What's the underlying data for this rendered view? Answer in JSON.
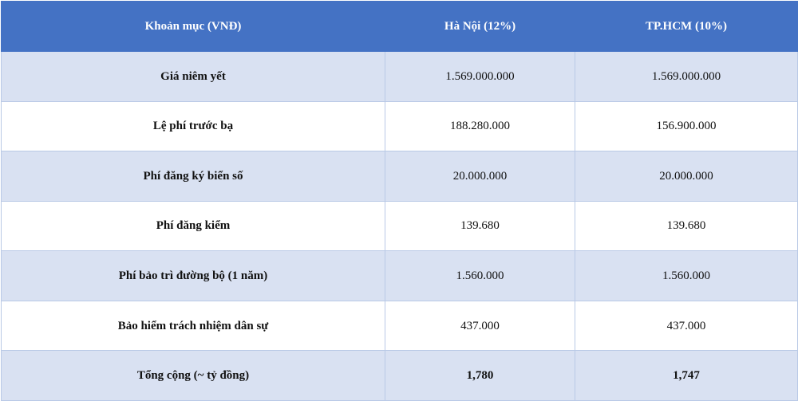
{
  "table": {
    "headers": [
      "Khoản mục (VNĐ)",
      "Hà Nội (12%)",
      "TP.HCM (10%)"
    ],
    "rows": [
      {
        "label": "Giá niêm yết",
        "hanoi": "1.569.000.000",
        "hcm": "1.569.000.000"
      },
      {
        "label": "Lệ phí trước bạ",
        "hanoi": "188.280.000",
        "hcm": "156.900.000"
      },
      {
        "label": "Phí đăng ký biển số",
        "hanoi": "20.000.000",
        "hcm": "20.000.000"
      },
      {
        "label": "Phí đăng kiểm",
        "hanoi": "139.680",
        "hcm": "139.680"
      },
      {
        "label": "Phí bảo trì đường bộ (1 năm)",
        "hanoi": "1.560.000",
        "hcm": "1.560.000"
      },
      {
        "label": "Bảo hiểm trách nhiệm dân sự",
        "hanoi": "437.000",
        "hcm": "437.000"
      },
      {
        "label": "Tổng cộng (~ tỷ đồng)",
        "hanoi": "1,780",
        "hcm": "1,747"
      }
    ]
  },
  "colors": {
    "header_bg": "#4472c4",
    "band_bg": "#d9e1f2",
    "row_bg": "#ffffff"
  }
}
